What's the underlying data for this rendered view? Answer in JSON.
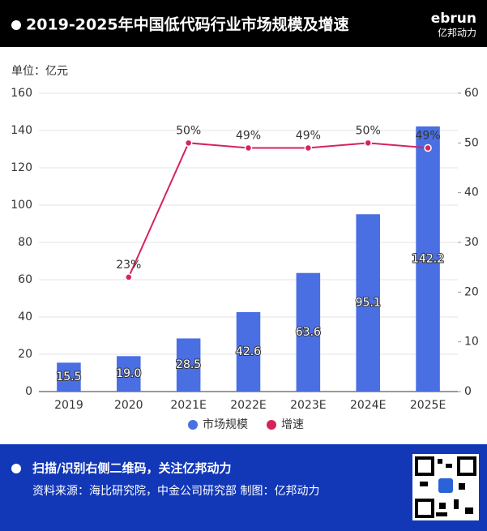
{
  "header": {
    "logo_brand": "ebrun",
    "logo_name": "亿邦动力"
  },
  "chart_data": {
    "type": "combo",
    "title": "2019-2025年中国低代码行业市场规模及增速",
    "y_unit": "单位：亿元",
    "categories": [
      "2019",
      "2020",
      "2021E",
      "2022E",
      "2023E",
      "2024E",
      "2025E"
    ],
    "series": [
      {
        "name": "市场规模",
        "type": "bar",
        "color": "#4a6fe3",
        "values": [
          15.5,
          19.0,
          28.5,
          42.6,
          63.6,
          95.1,
          142.2
        ],
        "value_labels": [
          "15.5",
          "19.0",
          "28.5",
          "42.6",
          "63.6",
          "95.1",
          "142.2"
        ]
      },
      {
        "name": "增速",
        "type": "line",
        "axis": "y2",
        "color": "#d6245a",
        "values": [
          null,
          23,
          50,
          49,
          49,
          50,
          49
        ],
        "value_labels": [
          null,
          "23%",
          "50%",
          "49%",
          "49%",
          "50%",
          "49%"
        ]
      }
    ],
    "ylim": [
      0,
      160
    ],
    "yticks": [
      0,
      20,
      40,
      60,
      80,
      100,
      120,
      140,
      160
    ],
    "y2lim": [
      0,
      60
    ],
    "y2ticks": [
      0,
      10,
      20,
      30,
      40,
      50,
      60
    ],
    "grid": true,
    "legend": "bottom"
  },
  "footer": {
    "cta": "扫描/识别右侧二维码，关注亿邦动力",
    "source": "资料来源：海比研究院，中金公司研究部   制图：亿邦动力"
  }
}
